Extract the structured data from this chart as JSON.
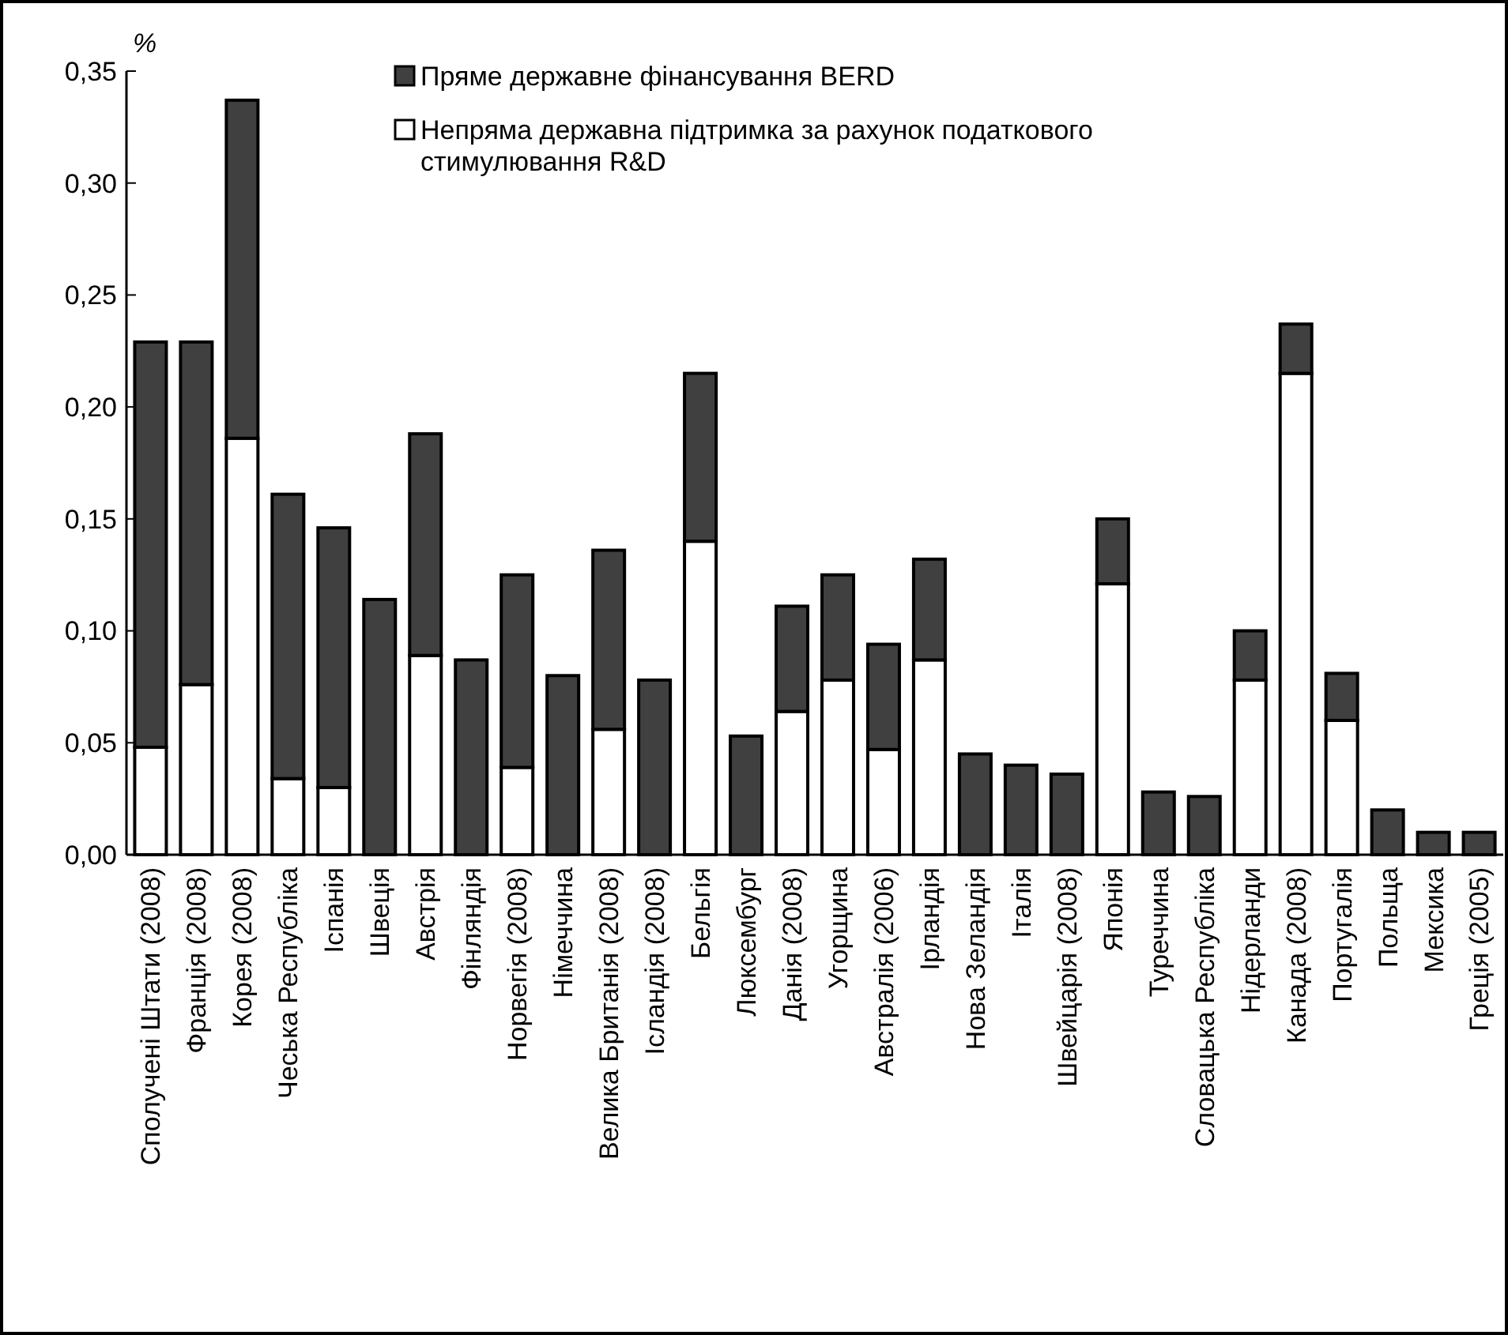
{
  "chart_data": {
    "type": "bar",
    "ylabel": "%",
    "stacked": true,
    "legend": "top",
    "ylim": [
      0,
      0.35
    ],
    "yticks": [
      {
        "value": 0,
        "label": "0,00"
      },
      {
        "value": 0.05,
        "label": "0,05"
      },
      {
        "value": 0.1,
        "label": "0,10"
      },
      {
        "value": 0.15,
        "label": "0,15"
      },
      {
        "value": 0.2,
        "label": "0,20"
      },
      {
        "value": 0.25,
        "label": "0,25"
      },
      {
        "value": 0.3,
        "label": "0,30"
      },
      {
        "value": 0.35,
        "label": "0,35"
      }
    ],
    "categories": [
      "Сполучені Штати (2008)",
      "Франція (2008)",
      "Корея (2008)",
      "Чеська Республіка",
      "Іспанія",
      "Швеція",
      "Австрія",
      "Фінляндія",
      "Норвегія (2008)",
      "Німеччина",
      "Велика Британія (2008)",
      "Ісландія (2008)",
      "Бельгія",
      "Люксембург",
      "Данія (2008)",
      "Угорщина",
      "Австралія (2006)",
      "Ірландія",
      "Нова Зеландія",
      "Італія",
      "Швейцарія (2008)",
      "Японія",
      "Туреччина",
      "Словацька Республіка",
      "Нідерланди",
      "Канада (2008)",
      "Португалія",
      "Польща",
      "Мексика",
      "Греція (2005)"
    ],
    "series": [
      {
        "name": "Непряма державна підтримка за рахунок податкового стимулювання R&D",
        "color": "#ffffff",
        "values": [
          0.048,
          0.076,
          0.186,
          0.034,
          0.03,
          null,
          0.089,
          null,
          0.039,
          null,
          0.056,
          null,
          0.14,
          null,
          0.064,
          0.078,
          0.047,
          0.087,
          null,
          null,
          null,
          0.121,
          null,
          null,
          0.078,
          0.215,
          0.06,
          null,
          null,
          null
        ]
      },
      {
        "name": "Пряме державне фінансування BERD",
        "color": "#404040",
        "values": [
          0.181,
          0.153,
          0.151,
          0.127,
          0.116,
          0.114,
          0.099,
          0.087,
          0.086,
          0.08,
          0.08,
          0.078,
          0.075,
          0.053,
          0.047,
          0.047,
          0.047,
          0.045,
          0.045,
          0.04,
          0.036,
          0.029,
          0.028,
          0.026,
          0.022,
          0.022,
          0.021,
          0.02,
          0.01,
          0.01
        ]
      }
    ]
  }
}
